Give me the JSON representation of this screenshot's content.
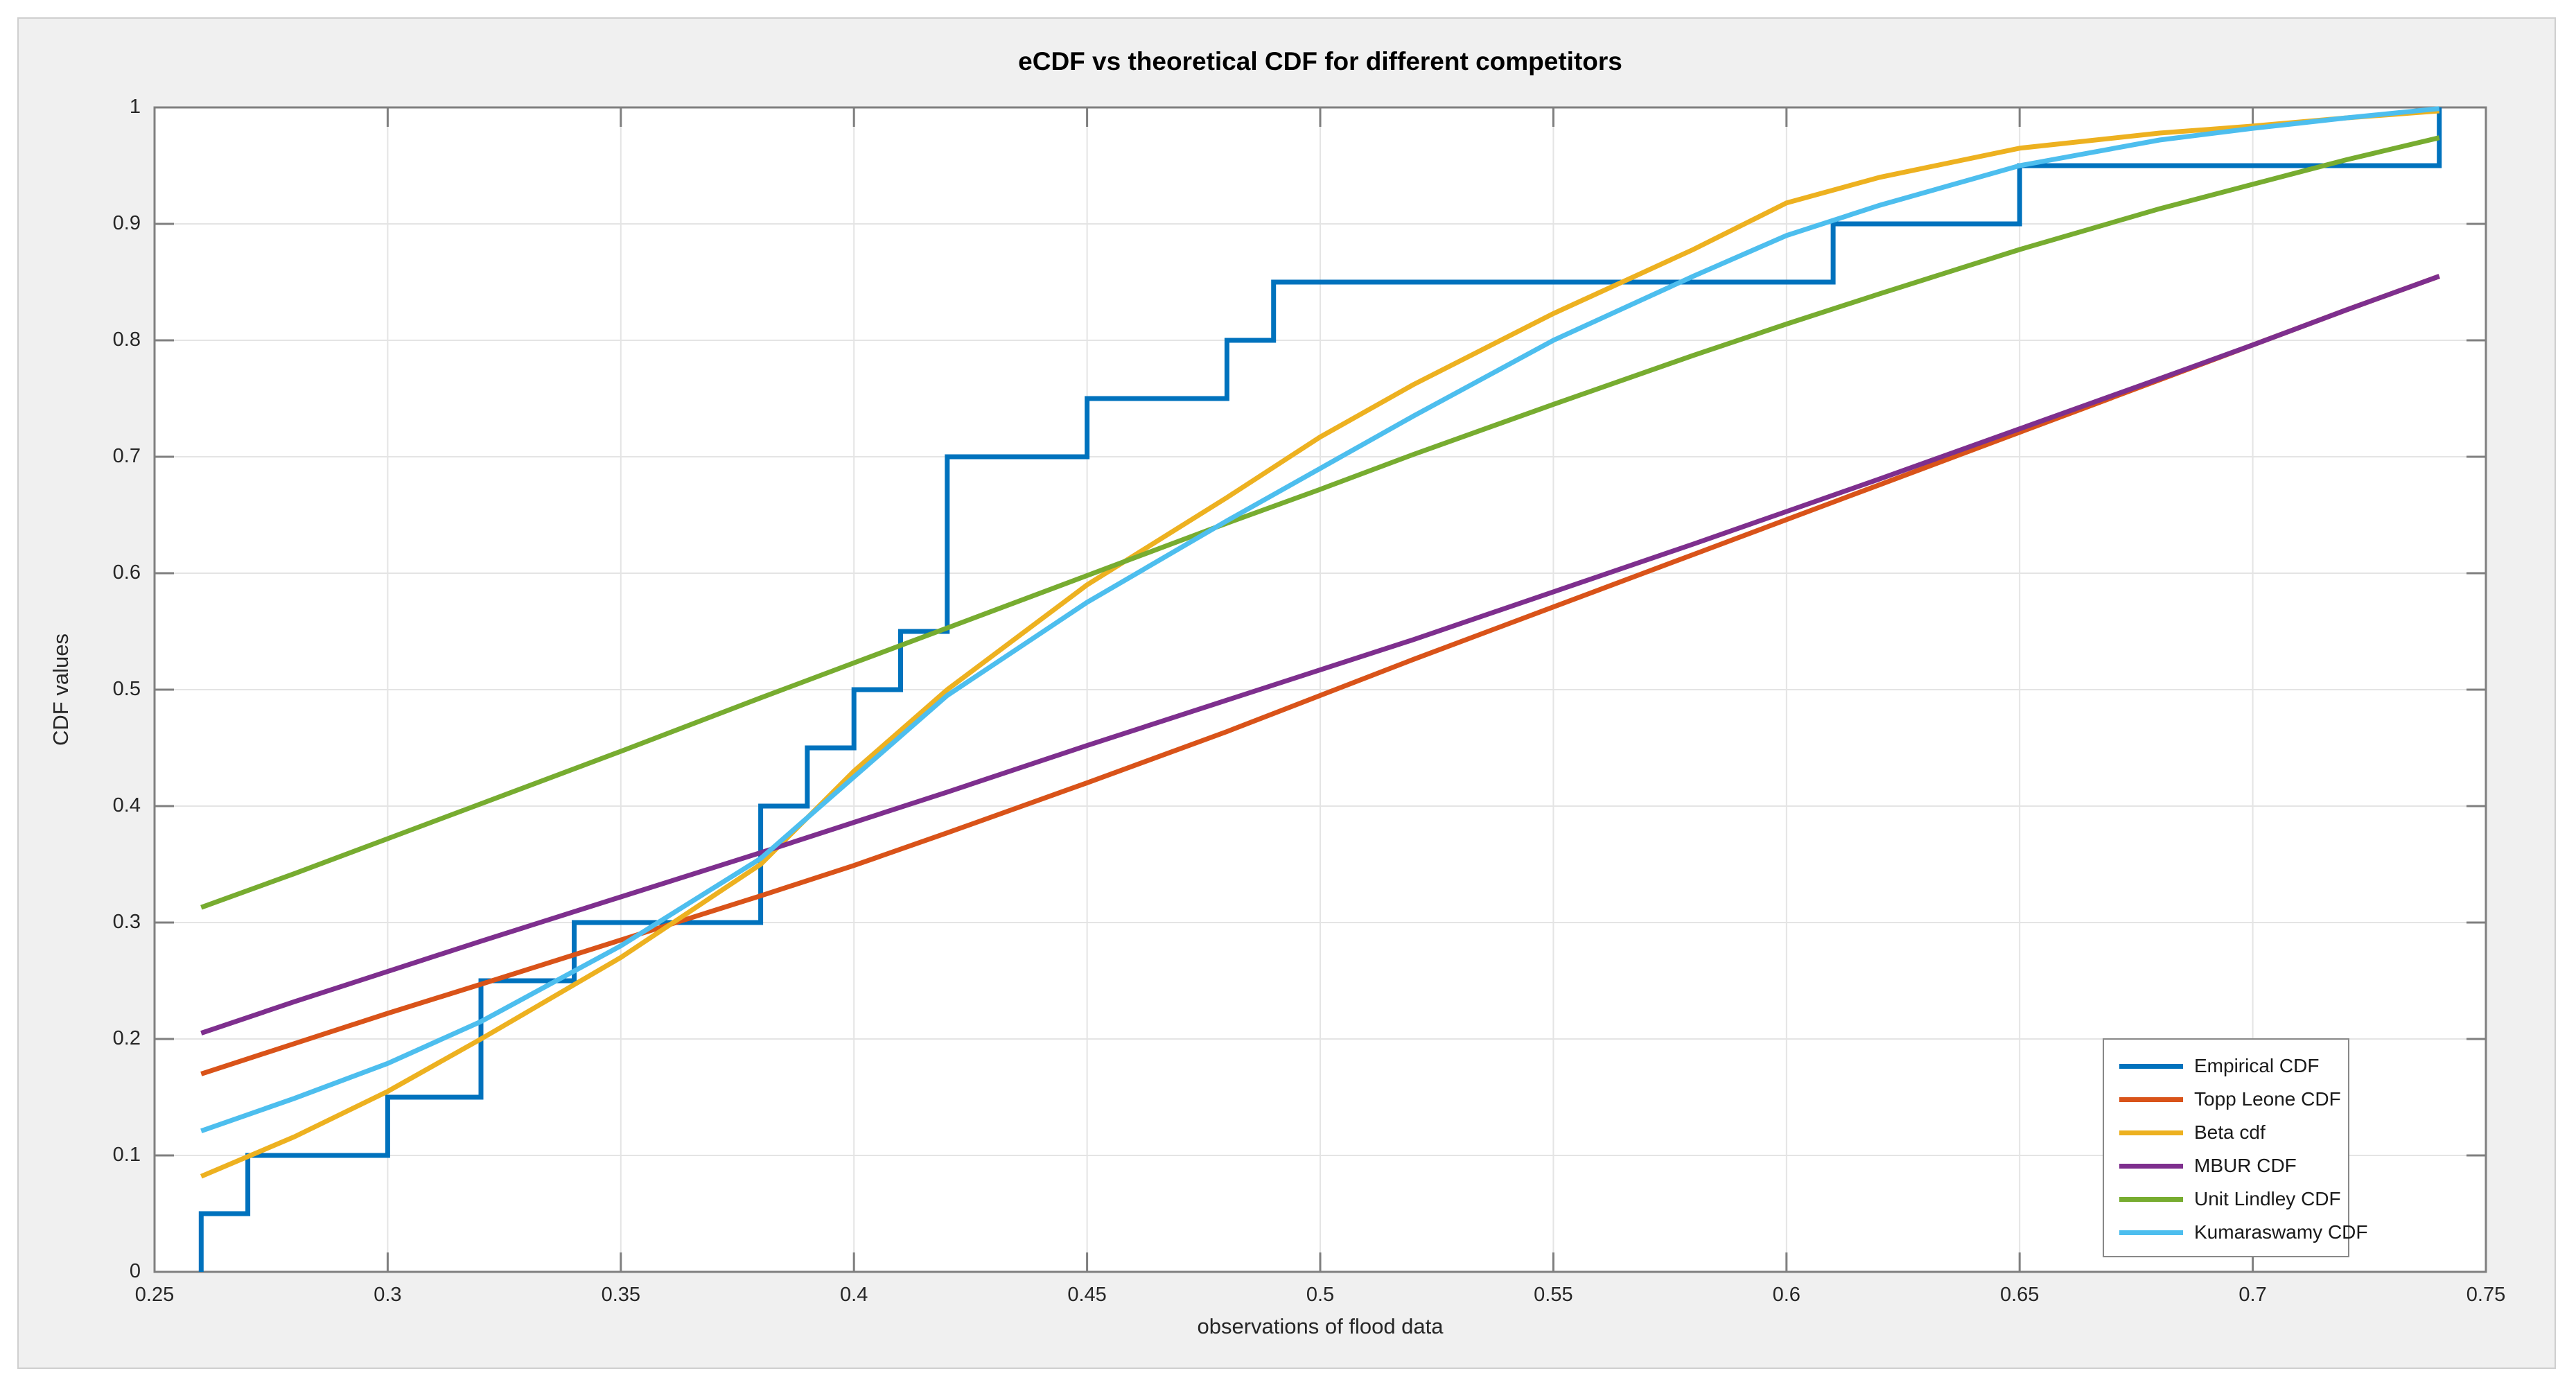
{
  "figure": {
    "background_color": "#F0F0F0",
    "plot_background_color": "#FFFFFF",
    "axis_color": "#7F7F7F",
    "grid_color": "#E4E4E4",
    "tick_label_color": "#262626"
  },
  "legend": {
    "position": "lower-right"
  },
  "chart_data": {
    "type": "line",
    "title": "eCDF vs theoretical CDF for different competitors",
    "xlabel": "observations of flood data",
    "ylabel": "CDF values",
    "xlim": [
      0.25,
      0.75
    ],
    "ylim": [
      0,
      1
    ],
    "grid": true,
    "xtick_values": [
      0.25,
      0.3,
      0.35,
      0.4,
      0.45,
      0.5,
      0.55,
      0.6,
      0.65,
      0.7,
      0.75
    ],
    "xtick_labels": [
      "0.25",
      "0.3",
      "0.35",
      "0.4",
      "0.45",
      "0.5",
      "0.55",
      "0.6",
      "0.65",
      "0.7",
      "0.75"
    ],
    "ytick_values": [
      0,
      0.1,
      0.2,
      0.3,
      0.4,
      0.5,
      0.6,
      0.7,
      0.8,
      0.9,
      1
    ],
    "ytick_labels": [
      "0",
      "0.1",
      "0.2",
      "0.3",
      "0.4",
      "0.5",
      "0.6",
      "0.7",
      "0.8",
      "0.9",
      "1"
    ],
    "series": [
      {
        "name": "Empirical CDF",
        "color": "#0072BD",
        "style": "stairs",
        "observations": [
          0.26,
          0.27,
          0.3,
          0.32,
          0.32,
          0.34,
          0.38,
          0.38,
          0.39,
          0.4,
          0.41,
          0.42,
          0.42,
          0.42,
          0.45,
          0.48,
          0.49,
          0.61,
          0.65,
          0.74
        ],
        "points": [
          [
            0.26,
            0
          ],
          [
            0.26,
            0.05
          ],
          [
            0.27,
            0.05
          ],
          [
            0.27,
            0.1
          ],
          [
            0.3,
            0.1
          ],
          [
            0.3,
            0.15
          ],
          [
            0.32,
            0.15
          ],
          [
            0.32,
            0.25
          ],
          [
            0.34,
            0.25
          ],
          [
            0.34,
            0.3
          ],
          [
            0.38,
            0.3
          ],
          [
            0.38,
            0.4
          ],
          [
            0.39,
            0.4
          ],
          [
            0.39,
            0.45
          ],
          [
            0.4,
            0.45
          ],
          [
            0.4,
            0.5
          ],
          [
            0.41,
            0.5
          ],
          [
            0.41,
            0.55
          ],
          [
            0.42,
            0.55
          ],
          [
            0.42,
            0.7
          ],
          [
            0.45,
            0.7
          ],
          [
            0.45,
            0.75
          ],
          [
            0.48,
            0.75
          ],
          [
            0.48,
            0.8
          ],
          [
            0.49,
            0.8
          ],
          [
            0.49,
            0.85
          ],
          [
            0.61,
            0.85
          ],
          [
            0.61,
            0.9
          ],
          [
            0.65,
            0.9
          ],
          [
            0.65,
            0.95
          ],
          [
            0.74,
            0.95
          ],
          [
            0.74,
            1.0
          ]
        ]
      },
      {
        "name": "Topp Leone CDF",
        "color": "#D95319",
        "style": "line",
        "x": [
          0.26,
          0.28,
          0.3,
          0.32,
          0.35,
          0.38,
          0.4,
          0.42,
          0.45,
          0.48,
          0.5,
          0.52,
          0.55,
          0.58,
          0.6,
          0.62,
          0.65,
          0.68,
          0.7,
          0.72,
          0.74
        ],
        "y": [
          0.17,
          0.196,
          0.222,
          0.247,
          0.285,
          0.323,
          0.349,
          0.377,
          0.42,
          0.464,
          0.495,
          0.526,
          0.571,
          0.616,
          0.646,
          0.676,
          0.721,
          0.766,
          0.796,
          0.826,
          0.855
        ]
      },
      {
        "name": "Beta cdf",
        "color": "#EDB120",
        "style": "line",
        "x": [
          0.26,
          0.28,
          0.3,
          0.32,
          0.35,
          0.38,
          0.4,
          0.42,
          0.45,
          0.48,
          0.5,
          0.52,
          0.55,
          0.58,
          0.6,
          0.62,
          0.65,
          0.68,
          0.7,
          0.72,
          0.74
        ],
        "y": [
          0.082,
          0.116,
          0.155,
          0.2,
          0.27,
          0.35,
          0.43,
          0.5,
          0.59,
          0.665,
          0.717,
          0.762,
          0.823,
          0.878,
          0.918,
          0.94,
          0.965,
          0.978,
          0.984,
          0.991,
          0.997
        ]
      },
      {
        "name": "MBUR CDF",
        "color": "#7E2F8E",
        "style": "line",
        "x": [
          0.26,
          0.28,
          0.3,
          0.32,
          0.35,
          0.38,
          0.4,
          0.42,
          0.45,
          0.48,
          0.5,
          0.52,
          0.55,
          0.58,
          0.6,
          0.62,
          0.65,
          0.68,
          0.7,
          0.72,
          0.74
        ],
        "y": [
          0.205,
          0.232,
          0.258,
          0.284,
          0.322,
          0.36,
          0.386,
          0.412,
          0.452,
          0.491,
          0.517,
          0.543,
          0.584,
          0.625,
          0.653,
          0.681,
          0.724,
          0.767,
          0.796,
          0.826,
          0.855
        ]
      },
      {
        "name": "Unit Lindley CDF",
        "color": "#77AC30",
        "style": "line",
        "x": [
          0.26,
          0.28,
          0.3,
          0.32,
          0.35,
          0.38,
          0.4,
          0.42,
          0.45,
          0.48,
          0.5,
          0.52,
          0.55,
          0.58,
          0.6,
          0.62,
          0.65,
          0.68,
          0.7,
          0.72,
          0.74
        ],
        "y": [
          0.313,
          0.342,
          0.372,
          0.402,
          0.447,
          0.493,
          0.523,
          0.553,
          0.598,
          0.643,
          0.672,
          0.702,
          0.745,
          0.787,
          0.814,
          0.84,
          0.878,
          0.913,
          0.934,
          0.955,
          0.974
        ]
      },
      {
        "name": "Kumaraswamy CDF",
        "color": "#4DBEEE",
        "style": "line",
        "x": [
          0.26,
          0.28,
          0.3,
          0.32,
          0.35,
          0.38,
          0.4,
          0.42,
          0.45,
          0.48,
          0.5,
          0.52,
          0.55,
          0.58,
          0.6,
          0.62,
          0.65,
          0.68,
          0.7,
          0.72,
          0.74
        ],
        "y": [
          0.121,
          0.149,
          0.179,
          0.215,
          0.28,
          0.355,
          0.425,
          0.495,
          0.575,
          0.645,
          0.69,
          0.735,
          0.8,
          0.855,
          0.89,
          0.916,
          0.95,
          0.972,
          0.982,
          0.991,
          0.999
        ]
      }
    ]
  }
}
